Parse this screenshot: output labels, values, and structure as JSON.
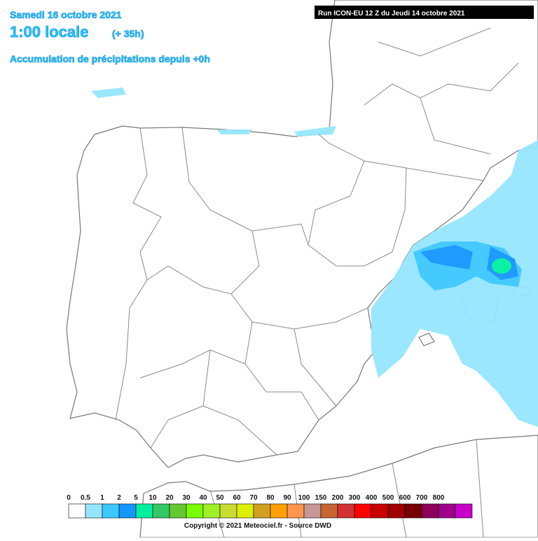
{
  "header": {
    "date": "Samedi 16 octobre 2021",
    "time": "1:00 locale",
    "lead": "(+ 35h)",
    "product": "Accumulation de précipitations depuis +0h",
    "run": "Run ICON-EU 12 Z du Jeudi 14 octobre 2021"
  },
  "legend": {
    "labels": [
      "0",
      "0.5",
      "1",
      "2",
      "5",
      "10",
      "20",
      "30",
      "40",
      "50",
      "60",
      "70",
      "80",
      "90",
      "100",
      "150",
      "200",
      "300",
      "400",
      "500",
      "600",
      "700",
      "800"
    ],
    "colors": [
      "#ffffff",
      "#96e6ff",
      "#3cc8ff",
      "#1496ff",
      "#00f0a0",
      "#32c864",
      "#64c832",
      "#78ff00",
      "#a0f028",
      "#c8dc32",
      "#dcf000",
      "#d2a01e",
      "#ffa000",
      "#ff9650",
      "#c89696",
      "#c86432",
      "#d23232",
      "#ff0000",
      "#c80000",
      "#a00000",
      "#780000",
      "#8c005a",
      "#a0008c",
      "#c800c8"
    ]
  },
  "footer": {
    "copyright": "Copyright © 2021 Meteociel.fr - Source DWD"
  }
}
